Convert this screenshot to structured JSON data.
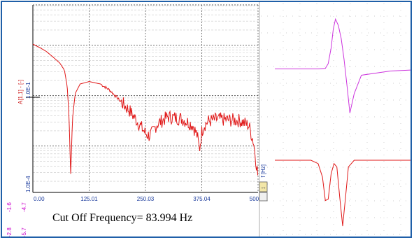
{
  "spectrum": {
    "x_ticks": [
      "0.00",
      "125.01",
      "250.03",
      "375.04",
      "500.06"
    ],
    "x_unit": "f [Hz]",
    "y_axis_label": "A[1,1] - [-]",
    "y_upper_label": "1.0E-1",
    "y_lower_label": "1.0E-4",
    "left_margin_ticks": [
      "-1.6",
      "-4.7",
      "-2.8",
      "-5.7"
    ]
  },
  "annotation": {
    "cutoff_text": "Cut Off Frequency= 83.994 Hz"
  },
  "colors": {
    "spectrum_line": "#e01818",
    "upper_trace": "#cc33dd",
    "lower_trace": "#e01818",
    "grid_major": "#606060",
    "grid_minor": "#c8c8c8",
    "axis_text": "#1a3a9c",
    "frame": "#1f5fa8",
    "margin_text": "#cc00cc"
  },
  "chart_data": [
    {
      "type": "line",
      "x": [
        0,
        15,
        30,
        45,
        60,
        70,
        76,
        80,
        84,
        88,
        94,
        105,
        125,
        150,
        170,
        190,
        215,
        235,
        250,
        258,
        265,
        275,
        300,
        330,
        355,
        365,
        370,
        375,
        380,
        390,
        410,
        430,
        460,
        480,
        490,
        495,
        500
      ],
      "y": [
        0.105,
        0.09,
        0.075,
        0.058,
        0.044,
        0.032,
        0.016,
        0.0045,
        0.00028,
        0.0035,
        0.011,
        0.017,
        0.019,
        0.017,
        0.013,
        0.0085,
        0.005,
        0.0028,
        0.0018,
        0.0016,
        0.0018,
        0.0027,
        0.0038,
        0.0035,
        0.0026,
        0.0016,
        0.00085,
        0.0019,
        0.0026,
        0.0031,
        0.0034,
        0.0033,
        0.0032,
        0.0025,
        0.0012,
        0.00055,
        0.00025
      ],
      "xlabel": "f [Hz]",
      "ylabel": "A[1,1] - [-]",
      "xlim": [
        0,
        500.06
      ],
      "log_y": true,
      "grid": true
    },
    {
      "type": "line",
      "series": [
        {
          "x": [
            0,
            60,
            70,
            74,
            78,
            81,
            84,
            88,
            92,
            96,
            100,
            104,
            110,
            120,
            160,
            190
          ],
          "y": [
            0.02,
            0.02,
            0.03,
            0.12,
            0.42,
            0.78,
            0.97,
            0.85,
            0.6,
            0.2,
            -0.3,
            -0.82,
            -0.45,
            -0.1,
            -0.02,
            0
          ]
        },
        {
          "x": [
            0,
            50,
            60,
            66,
            70,
            74,
            78,
            82,
            86,
            90,
            94,
            98,
            102,
            110,
            150,
            190
          ],
          "y": [
            0,
            0,
            -0.05,
            -0.25,
            -0.6,
            -0.58,
            -0.2,
            -0.05,
            -0.1,
            -0.55,
            -0.98,
            -0.55,
            -0.1,
            0,
            0,
            0
          ]
        }
      ],
      "grid": true
    }
  ]
}
